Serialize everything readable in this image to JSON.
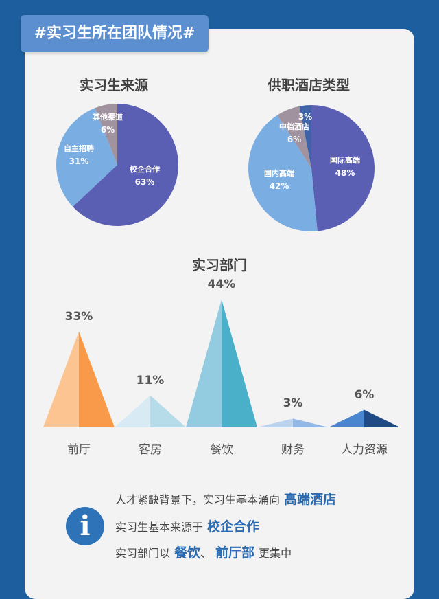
{
  "tag": "#实习生所在团队情况#",
  "colors": {
    "background": "#1d5f9e",
    "card": "#f3f3f3",
    "tag": "#5b8fd0",
    "accent": "#2a6ab0"
  },
  "chart_data": [
    {
      "type": "pie",
      "title": "实习生来源",
      "slices": [
        {
          "label": "校企合作",
          "value": 63,
          "display": "63%",
          "color": "#5b5fb3"
        },
        {
          "label": "自主招聘",
          "value": 31,
          "display": "31%",
          "color": "#7aaee3"
        },
        {
          "label": "其他渠道",
          "value": 6,
          "display": "6%",
          "color": "#a0939f"
        }
      ]
    },
    {
      "type": "pie",
      "title": "供职酒店类型",
      "slices": [
        {
          "label": "国际高端",
          "value": 48,
          "display": "48%",
          "color": "#5b5fb3"
        },
        {
          "label": "国内高端",
          "value": 42,
          "display": "42%",
          "color": "#7aaee3"
        },
        {
          "label": "中档酒店",
          "value": 6,
          "display": "6%",
          "color": "#a0939f"
        },
        {
          "label": "",
          "value": 3,
          "display": "3%",
          "color": "#3f63a8"
        }
      ]
    },
    {
      "type": "bar",
      "title": "实习部门",
      "categories": [
        "前厅",
        "客房",
        "餐饮",
        "财务",
        "人力资源"
      ],
      "values": [
        33,
        11,
        44,
        3,
        6
      ],
      "display": [
        "33%",
        "11%",
        "44%",
        "3%",
        "6%"
      ],
      "colors": [
        [
          "#fbc490",
          "#f89a4a"
        ],
        [
          "#d8ebf4",
          "#b6dce9"
        ],
        [
          "#93cbe0",
          "#4aafc9"
        ],
        [
          "#bcd3ee",
          "#93b8e6"
        ],
        [
          "#4a86cf",
          "#1f4a85"
        ]
      ]
    }
  ],
  "info": {
    "line1_pre": "人才紧缺背景下，实习生基本涌向",
    "line1_hl": "高端酒店",
    "line2_pre": "实习生基本来源于",
    "line2_hl": "校企合作",
    "line3_pre": "实习部门以",
    "line3_hl1": "餐饮",
    "line3_sep": "、",
    "line3_hl2": "前厅部",
    "line3_post": "更集中"
  }
}
